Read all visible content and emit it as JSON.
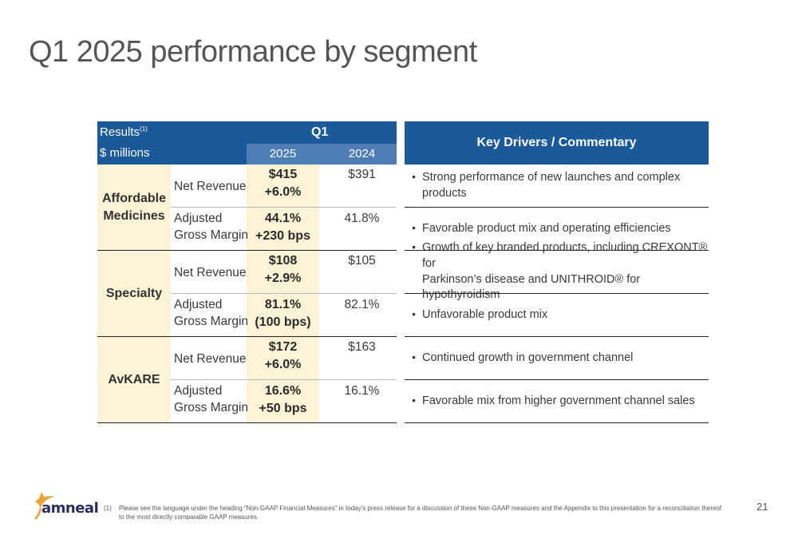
{
  "title": "Q1 2025 performance by segment",
  "results_table": {
    "header_results": "Results",
    "header_results_footnote": "(1)",
    "header_units": "$ millions",
    "header_period": "Q1",
    "col_current": "2025",
    "col_prior": "2024",
    "segments": [
      {
        "name_line1": "Affordable",
        "name_line2": "Medicines",
        "rows": [
          {
            "metric_line1": "Net Revenue",
            "metric_line2": "",
            "current": "$415",
            "change": "+6.0%",
            "prior": "$391"
          },
          {
            "metric_line1": "Adjusted",
            "metric_line2": "Gross Margin",
            "current": "44.1%",
            "change": "+230 bps",
            "prior": "41.8%"
          }
        ]
      },
      {
        "name_line1": "Specialty",
        "name_line2": "",
        "rows": [
          {
            "metric_line1": "Net Revenue",
            "metric_line2": "",
            "current": "$108",
            "change": "+2.9%",
            "prior": "$105"
          },
          {
            "metric_line1": "Adjusted",
            "metric_line2": "Gross Margin",
            "current": "81.1%",
            "change": "(100 bps)",
            "prior": "82.1%"
          }
        ]
      },
      {
        "name_line1": "AvKARE",
        "name_line2": "",
        "rows": [
          {
            "metric_line1": "Net Revenue",
            "metric_line2": "",
            "current": "$172",
            "change": "+6.0%",
            "prior": "$163"
          },
          {
            "metric_line1": "Adjusted",
            "metric_line2": "Gross Margin",
            "current": "16.6%",
            "change": "+50 bps",
            "prior": "16.1%"
          }
        ]
      }
    ]
  },
  "commentary": {
    "header": "Key Drivers / Commentary",
    "bullet_glyph": "•",
    "items": [
      {
        "line1": "Strong performance of new launches and complex products",
        "line2": ""
      },
      {
        "line1": "Favorable product mix and operating efficiencies",
        "line2": ""
      },
      {
        "line1": "Growth of key branded products, including CREXONT® for",
        "line2": "Parkinson’s disease and UNITHROID® for hypothyroidism"
      },
      {
        "line1": "Unfavorable product mix",
        "line2": ""
      },
      {
        "line1": "Continued growth in government channel",
        "line2": ""
      },
      {
        "line1": "Favorable mix from higher government channel sales",
        "line2": ""
      }
    ]
  },
  "footer": {
    "logo_text": "amneal",
    "footnote_marker": "(1)",
    "footnote_text": "Please see the language under the heading “Non-GAAP Financial Measures” in today’s press release for a discussion of these Non-GAAP measures and the Appendix to this presentation for a reconciliation thereof to the most directly comparable GAAP measures.",
    "page_number": "21"
  },
  "colors": {
    "header_blue": "#1b5a98",
    "subheader_blue": "#4e7eb3",
    "highlight_cream": "#fbf3d6",
    "logo_orange": "#e8a33d",
    "logo_navy": "#2d2d5a"
  }
}
